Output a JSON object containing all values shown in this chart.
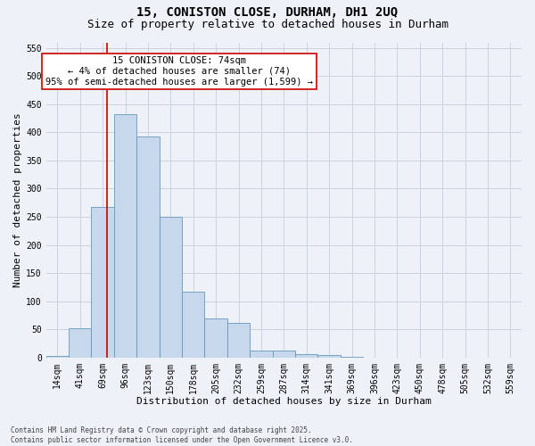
{
  "title_line1": "15, CONISTON CLOSE, DURHAM, DH1 2UQ",
  "title_line2": "Size of property relative to detached houses in Durham",
  "xlabel": "Distribution of detached houses by size in Durham",
  "ylabel": "Number of detached properties",
  "bar_labels": [
    "14sqm",
    "41sqm",
    "69sqm",
    "96sqm",
    "123sqm",
    "150sqm",
    "178sqm",
    "205sqm",
    "232sqm",
    "259sqm",
    "287sqm",
    "314sqm",
    "341sqm",
    "369sqm",
    "396sqm",
    "423sqm",
    "450sqm",
    "478sqm",
    "505sqm",
    "532sqm",
    "559sqm"
  ],
  "bar_values": [
    3,
    52,
    268,
    432,
    392,
    250,
    117,
    70,
    62,
    13,
    12,
    6,
    4,
    1,
    0,
    0,
    0,
    0,
    0,
    0,
    0
  ],
  "bar_color": "#c8d8ec",
  "bar_edge_color": "#6699bb",
  "grid_color": "#c8d4e0",
  "background_color": "#eef2f8",
  "vline_x_index": 2.18,
  "vline_color": "#cc0000",
  "annotation_text": "15 CONISTON CLOSE: 74sqm\n← 4% of detached houses are smaller (74)\n95% of semi-detached houses are larger (1,599) →",
  "annotation_box_color": "#ffffff",
  "annotation_box_edge": "#cc0000",
  "ylim": [
    0,
    560
  ],
  "yticks": [
    0,
    50,
    100,
    150,
    200,
    250,
    300,
    350,
    400,
    450,
    500,
    550
  ],
  "footnote": "Contains HM Land Registry data © Crown copyright and database right 2025.\nContains public sector information licensed under the Open Government Licence v3.0.",
  "title_fontsize": 10,
  "subtitle_fontsize": 9,
  "axis_label_fontsize": 8,
  "tick_fontsize": 7,
  "annotation_fontsize": 7.5,
  "footnote_fontsize": 5.5
}
